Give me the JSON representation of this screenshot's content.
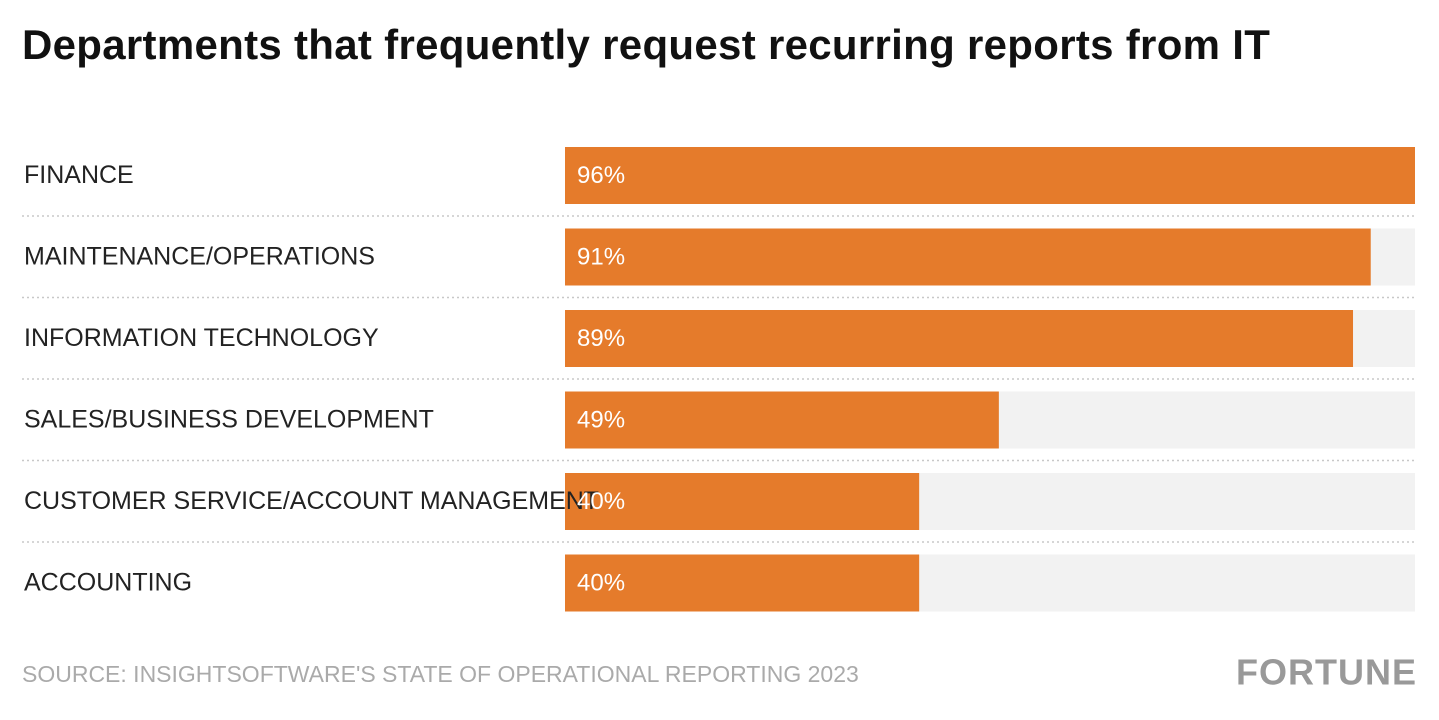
{
  "chart_data": {
    "type": "bar",
    "orientation": "horizontal",
    "title": "Departments that frequently request recurring reports from IT",
    "categories": [
      "FINANCE",
      "MAINTENANCE/OPERATIONS",
      "INFORMATION TECHNOLOGY",
      "SALES/BUSINESS DEVELOPMENT",
      "CUSTOMER SERVICE/ACCOUNT MANAGEMENT",
      "ACCOUNTING"
    ],
    "values": [
      96,
      91,
      89,
      49,
      40,
      40
    ],
    "value_labels": [
      "96%",
      "91%",
      "89%",
      "49%",
      "40%",
      "40%"
    ],
    "color": "#e57b2b",
    "xlim": [
      0,
      96
    ],
    "source": "SOURCE: INSIGHTSOFTWARE'S STATE OF OPERATIONAL REPORTING 2023",
    "brand": "FORTUNE"
  }
}
